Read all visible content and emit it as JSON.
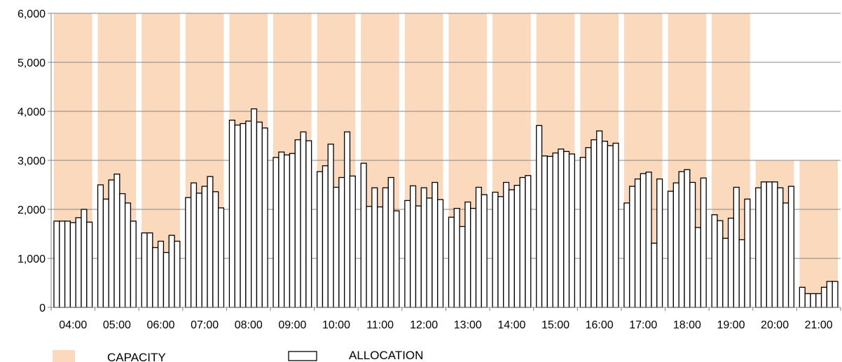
{
  "chart_data": {
    "type": "bar",
    "categories": [
      "04:00",
      "05:00",
      "06:00",
      "07:00",
      "08:00",
      "09:00",
      "10:00",
      "11:00",
      "12:00",
      "13:00",
      "14:00",
      "15:00",
      "16:00",
      "17:00",
      "18:00",
      "19:00",
      "20:00",
      "21:00"
    ],
    "ylim": [
      0,
      6000
    ],
    "yticks": [
      "0",
      "1,000",
      "2,000",
      "3,000",
      "4,000",
      "5,000",
      "6,000"
    ],
    "ytick_values": [
      0,
      1000,
      2000,
      3000,
      4000,
      5000,
      6000
    ],
    "grid": true,
    "legend_position": "bottom",
    "series": [
      {
        "name": "CAPACITY",
        "color": "#fbd9bd",
        "values": [
          6000,
          6000,
          6000,
          6000,
          6000,
          6000,
          6000,
          6000,
          6000,
          6000,
          6000,
          6000,
          6000,
          6000,
          6000,
          6000,
          3000,
          3000
        ]
      },
      {
        "name": "ALLOCATION",
        "color": "#ffffff",
        "stroke": "#000000",
        "sub_values": [
          [
            1760,
            1760,
            1760,
            1730,
            1830,
            2000,
            1740
          ],
          [
            2500,
            2210,
            2600,
            2720,
            2320,
            2130,
            1760
          ],
          [
            1520,
            1520,
            1220,
            1350,
            1120,
            1470,
            1350
          ],
          [
            2240,
            2540,
            2330,
            2470,
            2670,
            2360,
            2030
          ],
          [
            3820,
            3720,
            3750,
            3800,
            4050,
            3780,
            3660
          ],
          [
            3060,
            3170,
            3110,
            3140,
            3420,
            3580,
            3400
          ],
          [
            2770,
            2890,
            3330,
            2450,
            2650,
            3580,
            2680
          ],
          [
            2940,
            2060,
            2440,
            2050,
            2440,
            2650,
            1970
          ],
          [
            2180,
            2480,
            2070,
            2440,
            2230,
            2550,
            2200
          ],
          [
            1840,
            2020,
            1650,
            2150,
            2020,
            2450,
            2300
          ],
          [
            2350,
            2260,
            2550,
            2400,
            2490,
            2650,
            2690
          ],
          [
            3710,
            3090,
            3080,
            3150,
            3230,
            3180,
            3130
          ],
          [
            3060,
            3260,
            3420,
            3600,
            3390,
            3300,
            3350
          ],
          [
            2130,
            2470,
            2620,
            2730,
            2760,
            1310,
            2620
          ],
          [
            2370,
            2540,
            2770,
            2810,
            2550,
            1630,
            2640
          ],
          [
            1890,
            1770,
            1410,
            1820,
            2450,
            1380,
            2210
          ],
          [
            2440,
            2560,
            2560,
            2560,
            2440,
            2130,
            2470
          ],
          [
            410,
            280,
            280,
            280,
            410,
            530,
            530
          ]
        ]
      }
    ]
  }
}
